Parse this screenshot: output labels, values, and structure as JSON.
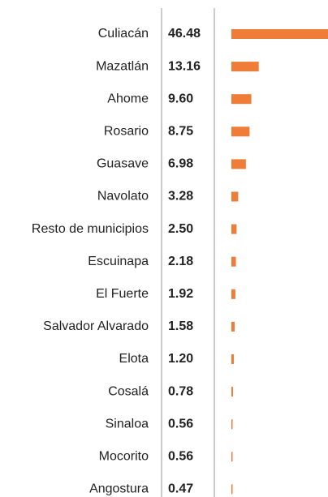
{
  "chart_data": {
    "type": "bar",
    "orientation": "horizontal",
    "color": "#ef7d37",
    "categories": [
      "Culiacán",
      "Mazatlán",
      "Ahome",
      "Rosario",
      "Guasave",
      "Navolato",
      "Resto de municipios",
      "Escuinapa",
      "El Fuerte",
      "Salvador Alvarado",
      "Elota",
      "Cosalá",
      "Sinaloa",
      "Mocorito",
      "Angostura"
    ],
    "values": [
      46.48,
      13.16,
      9.6,
      8.75,
      6.98,
      3.28,
      2.5,
      2.18,
      1.92,
      1.58,
      1.2,
      0.78,
      0.56,
      0.56,
      0.47
    ],
    "value_labels": [
      "46.48",
      "13.16",
      "9.60",
      "8.75",
      "6.98",
      "3.28",
      "2.50",
      "2.18",
      "1.92",
      "1.58",
      "1.20",
      "0.78",
      "0.56",
      "0.56",
      "0.47"
    ]
  }
}
